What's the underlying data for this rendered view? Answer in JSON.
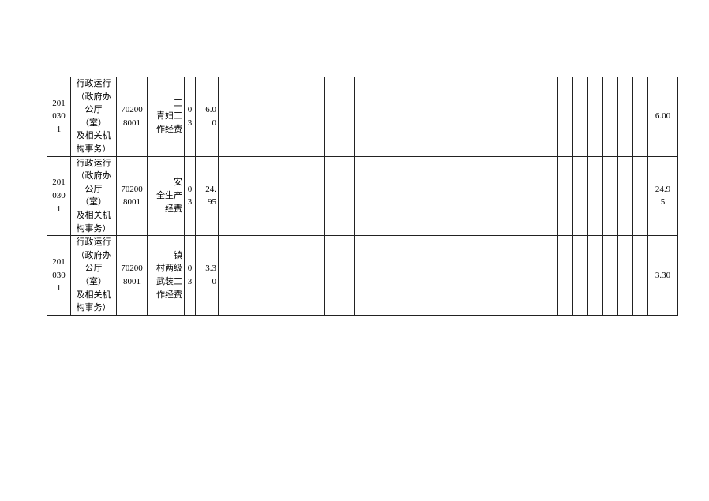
{
  "table": {
    "rows": [
      {
        "code": "201\n030\n1",
        "category": "行政运行\n（政府办\n公厅（室）\n及相关机\n构事务）",
        "project_code": "70200\n8001",
        "item": "工\n青妇工\n作经费",
        "type": "0\n3",
        "amount": "6.0\n0",
        "total": "6.00"
      },
      {
        "code": "201\n030\n1",
        "category": "行政运行\n（政府办\n公厅（室）\n及相关机\n构事务）",
        "project_code": "70200\n8001",
        "item": "安\n全生产\n经费",
        "type": "0\n3",
        "amount": "24.\n95",
        "total": "24.9\n5"
      },
      {
        "code": "201\n030\n1",
        "category": "行政运行\n（政府办\n公厅（室）\n及相关机\n构事务）",
        "project_code": "70200\n8001",
        "item": "镇\n村两级\n武装工\n作经费",
        "type": "0\n3",
        "amount": "3.3\n0",
        "total": "3.30"
      }
    ]
  }
}
